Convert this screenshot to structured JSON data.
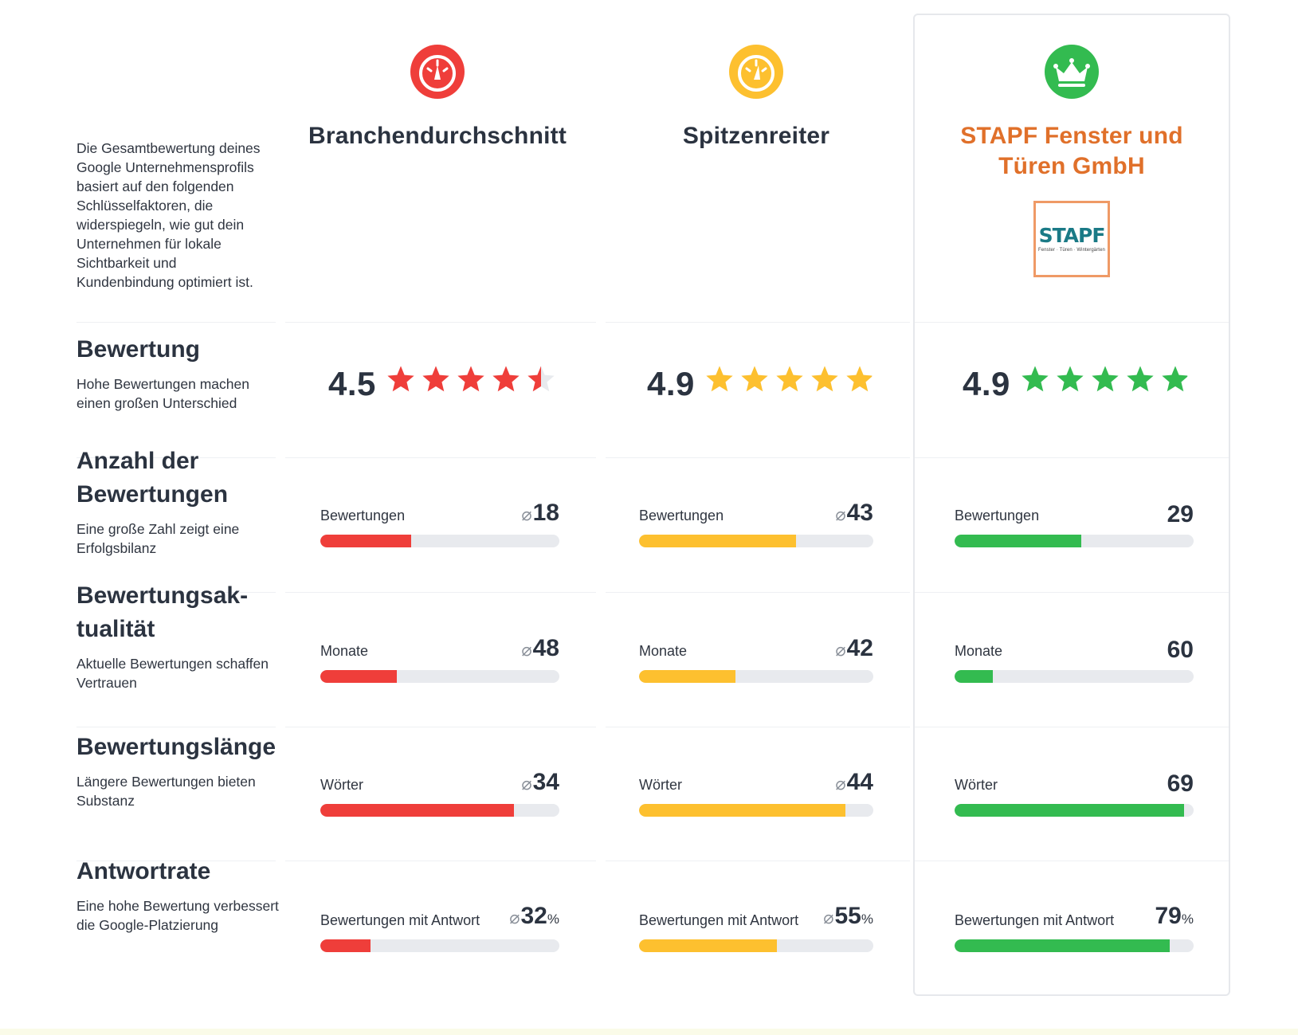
{
  "intro": "Die Gesamtbewertung deines Google Unternehmensprofils basiert auf den folgenden Schlüsselfaktoren, die widerspiegeln, wie gut dein Unternehmen für lokale Sichtbarkeit und Kundenbindung optimiert ist.",
  "columns": [
    {
      "title": "Branchendurchschnitt",
      "icon": "speedometer-icon",
      "color": "#ef3e3a"
    },
    {
      "title": "Spitzenreiter",
      "icon": "speedometer-icon",
      "color": "#fdc02f"
    },
    {
      "title": "STAPF Fenster und Türen GmbH",
      "icon": "crown-icon",
      "color": "#33bb50",
      "logo_word": "STAPF",
      "logo_sub": "Fenster · Türen · Wintergärten"
    }
  ],
  "rows": {
    "rating": {
      "title": "Bewertung",
      "desc": "Hohe Bewertungen machen einen großen Unterschied",
      "scores": [
        "4.5",
        "4.9",
        "4.9"
      ],
      "stars": [
        4.5,
        4.9,
        4.9
      ]
    },
    "count": {
      "title": "Anzahl der Bewertungen",
      "desc": "Eine große Zahl zeigt eine Erfolgsbilanz",
      "label": "Bewertungen",
      "values": [
        "18",
        "43",
        "29"
      ],
      "fill": [
        0.38,
        0.67,
        0.53
      ]
    },
    "recency": {
      "title": "Bewertungsak-tualität",
      "desc": "Aktuelle Bewertungen schaffen Vertrauen",
      "label": "Monate",
      "values": [
        "48",
        "42",
        "60"
      ],
      "fill": [
        0.32,
        0.41,
        0.16
      ]
    },
    "length": {
      "title": "Bewertungslänge",
      "desc": "Längere Bewertungen bieten Substanz",
      "label": "Wörter",
      "values": [
        "34",
        "44",
        "69"
      ],
      "fill": [
        0.81,
        0.88,
        0.96
      ]
    },
    "response": {
      "title": "Antwortrate",
      "desc": "Eine hohe Bewertung verbessert die Google-Platzierung",
      "label": "Bewertungen mit Antwort",
      "values": [
        "32",
        "55",
        "79"
      ],
      "unit": "%",
      "fill": [
        0.21,
        0.59,
        0.9
      ]
    }
  },
  "avg_symbol": "⌀"
}
